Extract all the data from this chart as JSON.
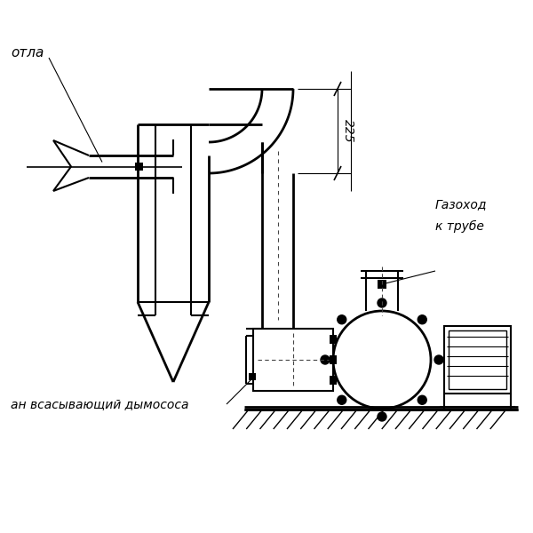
{
  "bg_color": "#ffffff",
  "line_color": "#000000",
  "figsize": [
    6.0,
    6.0
  ],
  "dpi": 100,
  "label_kotla": "отла",
  "label_gazohod": "Газоход",
  "label_trube": "к трубе",
  "label_patron": "ан всасывающий дымососа",
  "label_225": "225"
}
